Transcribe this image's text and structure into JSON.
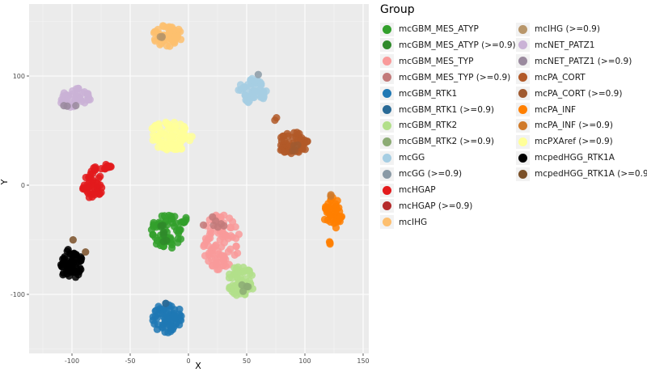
{
  "chart_data": {
    "type": "scatter",
    "title": "",
    "xlabel": "X",
    "ylabel": "Y",
    "xlim": [
      -130,
      152
    ],
    "ylim": [
      -155,
      165
    ],
    "grid": true,
    "x_ticks": [
      "-100",
      "-50",
      "0",
      "50",
      "100",
      "150"
    ],
    "x_tick_values": [
      -100,
      -50,
      0,
      50,
      100,
      150
    ],
    "y_ticks": [
      "100",
      "0",
      "-100"
    ],
    "y_tick_values": [
      100,
      0,
      -100
    ],
    "legend_title": "Group",
    "legend_position": "right",
    "series": [
      {
        "name": "mcGBM_MES_ATYP",
        "color": "#33a02c",
        "clusters": [
          {
            "cx": -18,
            "cy": -42,
            "rx": 14,
            "ry": 16,
            "n": 60
          },
          {
            "cx": -2,
            "cy": -32,
            "rx": 4,
            "ry": 3,
            "n": 6
          }
        ]
      },
      {
        "name": "mcGBM_MES_ATYP (>=0.9)",
        "color": "#2f8a2a",
        "clusters": [
          {
            "cx": -22,
            "cy": -44,
            "rx": 6,
            "ry": 8,
            "n": 6
          }
        ]
      },
      {
        "name": "mcGBM_MES_TYP",
        "color": "#f99a9a",
        "clusters": [
          {
            "cx": 28,
            "cy": -52,
            "rx": 16,
            "ry": 26,
            "n": 90
          }
        ]
      },
      {
        "name": "mcGBM_MES_TYP (>=0.9)",
        "color": "#c27a7a",
        "clusters": [
          {
            "cx": 22,
            "cy": -35,
            "rx": 10,
            "ry": 6,
            "n": 7
          }
        ]
      },
      {
        "name": "mcGBM_RTK1",
        "color": "#1f78b4",
        "clusters": [
          {
            "cx": -18,
            "cy": -122,
            "rx": 13,
            "ry": 14,
            "n": 60
          }
        ]
      },
      {
        "name": "mcGBM_RTK1 (>=0.9)",
        "color": "#2a6a96",
        "clusters": [
          {
            "cx": -22,
            "cy": -108,
            "rx": 3,
            "ry": 2,
            "n": 2
          }
        ]
      },
      {
        "name": "mcGBM_RTK2",
        "color": "#b2df8a",
        "clusters": [
          {
            "cx": 45,
            "cy": -88,
            "rx": 12,
            "ry": 14,
            "n": 60
          }
        ]
      },
      {
        "name": "mcGBM_RTK2 (>=0.9)",
        "color": "#8cab74",
        "clusters": [
          {
            "cx": 48,
            "cy": -95,
            "rx": 6,
            "ry": 4,
            "n": 4
          }
        ]
      },
      {
        "name": "mcGG",
        "color": "#a6cee3",
        "clusters": [
          {
            "cx": 55,
            "cy": 87,
            "rx": 12,
            "ry": 12,
            "n": 50
          }
        ]
      },
      {
        "name": "mcGG (>=0.9)",
        "color": "#8a9aa6",
        "clusters": [
          {
            "cx": 61,
            "cy": 101,
            "rx": 2,
            "ry": 2,
            "n": 1
          }
        ]
      },
      {
        "name": "mcHGAP",
        "color": "#e31a1c",
        "clusters": [
          {
            "cx": -82,
            "cy": 0,
            "rx": 9,
            "ry": 14,
            "n": 40
          },
          {
            "cx": -74,
            "cy": 16,
            "rx": 8,
            "ry": 4,
            "n": 15
          }
        ]
      },
      {
        "name": "mcHGAP (>=0.9)",
        "color": "#b42a2a",
        "clusters": []
      },
      {
        "name": "mcIHG",
        "color": "#fdbf6f",
        "clusters": [
          {
            "cx": -18,
            "cy": 137,
            "rx": 14,
            "ry": 10,
            "n": 50
          }
        ]
      },
      {
        "name": "mcIHG (>=0.9)",
        "color": "#b8966a",
        "clusters": [
          {
            "cx": -22,
            "cy": 137,
            "rx": 4,
            "ry": 3,
            "n": 3
          }
        ]
      },
      {
        "name": "mcNET_PATZ1",
        "color": "#cab2d6",
        "clusters": [
          {
            "cx": -98,
            "cy": 80,
            "rx": 14,
            "ry": 9,
            "n": 45
          }
        ]
      },
      {
        "name": "mcNET_PATZ1 (>=0.9)",
        "color": "#9a8a9e",
        "clusters": [
          {
            "cx": -102,
            "cy": 72,
            "rx": 8,
            "ry": 2,
            "n": 3
          }
        ]
      },
      {
        "name": "mcPA_CORT",
        "color": "#b15928",
        "clusters": [
          {
            "cx": 90,
            "cy": 38,
            "rx": 13,
            "ry": 11,
            "n": 55
          },
          {
            "cx": 76,
            "cy": 60,
            "rx": 2,
            "ry": 2,
            "n": 2
          }
        ]
      },
      {
        "name": "mcPA_CORT (>=0.9)",
        "color": "#a05a30",
        "clusters": [
          {
            "cx": 93,
            "cy": 35,
            "rx": 5,
            "ry": 5,
            "n": 4
          }
        ]
      },
      {
        "name": "mcPA_INF",
        "color": "#ff7f00",
        "clusters": [
          {
            "cx": 124,
            "cy": -26,
            "rx": 8,
            "ry": 15,
            "n": 45
          },
          {
            "cx": 120,
            "cy": -53,
            "rx": 2,
            "ry": 2,
            "n": 3
          }
        ]
      },
      {
        "name": "mcPA_INF (>=0.9)",
        "color": "#d07a2a",
        "clusters": [
          {
            "cx": 121,
            "cy": -10,
            "rx": 2,
            "ry": 2,
            "n": 2
          }
        ]
      },
      {
        "name": "mcPXAref (>=0.9)",
        "color": "#ffff99",
        "clusters": [
          {
            "cx": -15,
            "cy": 45,
            "rx": 20,
            "ry": 14,
            "n": 90
          }
        ]
      },
      {
        "name": "mcpedHGG_RTK1A",
        "color": "#000000",
        "clusters": [
          {
            "cx": -101,
            "cy": -72,
            "rx": 10,
            "ry": 14,
            "n": 60
          }
        ]
      },
      {
        "name": "mcpedHGG_RTK1A (>=0.9)",
        "color": "#7a5028",
        "clusters": [
          {
            "cx": -100,
            "cy": -50,
            "rx": 1,
            "ry": 1,
            "n": 1
          },
          {
            "cx": -88,
            "cy": -62,
            "rx": 1,
            "ry": 1,
            "n": 1
          }
        ]
      }
    ]
  }
}
